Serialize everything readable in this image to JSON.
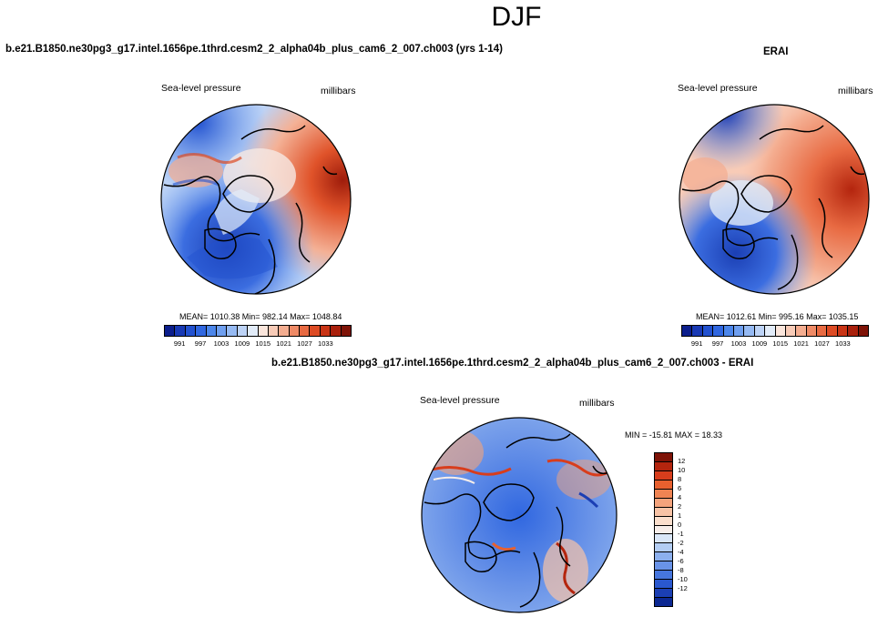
{
  "season": "DJF",
  "case_title": "b.e21.B1850.ne30pg3_g17.intel.1656pe.1thrd.cesm2_2_alpha04b_plus_cam6_2_007.ch003 (yrs 1-14)",
  "obs_title": "ERAI",
  "diff_title": "b.e21.B1850.ne30pg3_g17.intel.1656pe.1thrd.cesm2_2_alpha04b_plus_cam6_2_007.ch003 - ERAI",
  "variable_label": "Sea-level pressure",
  "units_label": "millibars",
  "model_panel": {
    "stats": "MEAN= 1010.38  Min= 982.14  Max= 1048.84"
  },
  "obs_panel": {
    "stats": "MEAN= 1012.61  Min= 995.16  Max= 1035.15"
  },
  "diff_panel": {
    "stats": "MIN = -15.81 MAX =  18.33"
  },
  "abs_colorbar": {
    "ticks": [
      "991",
      "997",
      "1003",
      "1009",
      "1015",
      "1021",
      "1027",
      "1033"
    ],
    "colors": [
      "#0c1e8c",
      "#1839b4",
      "#2251cf",
      "#3067e0",
      "#4c86ea",
      "#6f9fef",
      "#96baf3",
      "#bdd3f6",
      "#e2ecf9",
      "#fbe6dc",
      "#f8cbb7",
      "#f4ad90",
      "#ef8a66",
      "#e86a42",
      "#dd4b24",
      "#c93415",
      "#a9200c",
      "#7e1307"
    ]
  },
  "diff_colorbar": {
    "ticks": [
      "12",
      "10",
      "8",
      "6",
      "4",
      "2",
      "1",
      "0",
      "-1",
      "-2",
      "-4",
      "-6",
      "-8",
      "-10",
      "-12"
    ],
    "colors": [
      "#7e1307",
      "#b4250e",
      "#d83d1c",
      "#e8602e",
      "#f08453",
      "#f4a37c",
      "#f8c3a6",
      "#fbdfcd",
      "#f7eeea",
      "#d9e6f7",
      "#b3cdf3",
      "#8cb0ee",
      "#6993e8",
      "#4676de",
      "#2a58cf",
      "#1b3fb4",
      "#0c2892"
    ]
  }
}
